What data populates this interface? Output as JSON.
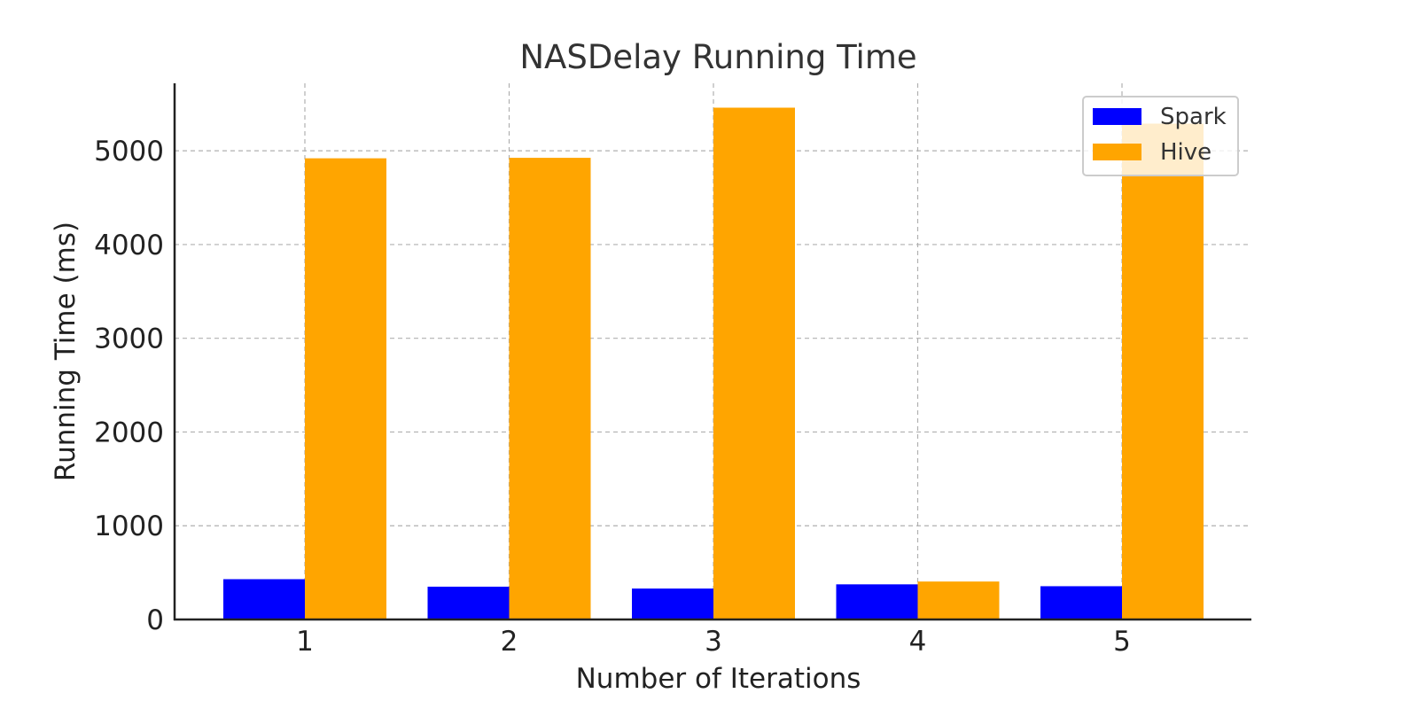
{
  "chart_data": {
    "type": "bar",
    "title": "NASDelay Running Time",
    "xlabel": "Number of Iterations",
    "ylabel": "Running Time (ms)",
    "categories": [
      "1",
      "2",
      "3",
      "4",
      "5"
    ],
    "series": [
      {
        "name": "Spark",
        "color": "#0000ff",
        "values": [
          430,
          350,
          330,
          375,
          355
        ]
      },
      {
        "name": "Hive",
        "color": "#ffa500",
        "values": [
          4920,
          4925,
          5460,
          405,
          5290
        ]
      }
    ],
    "ylim": [
      0,
      5720
    ],
    "yticks": [
      0,
      1000,
      2000,
      3000,
      4000,
      5000
    ],
    "grid": true,
    "legend_position": "top-right"
  }
}
